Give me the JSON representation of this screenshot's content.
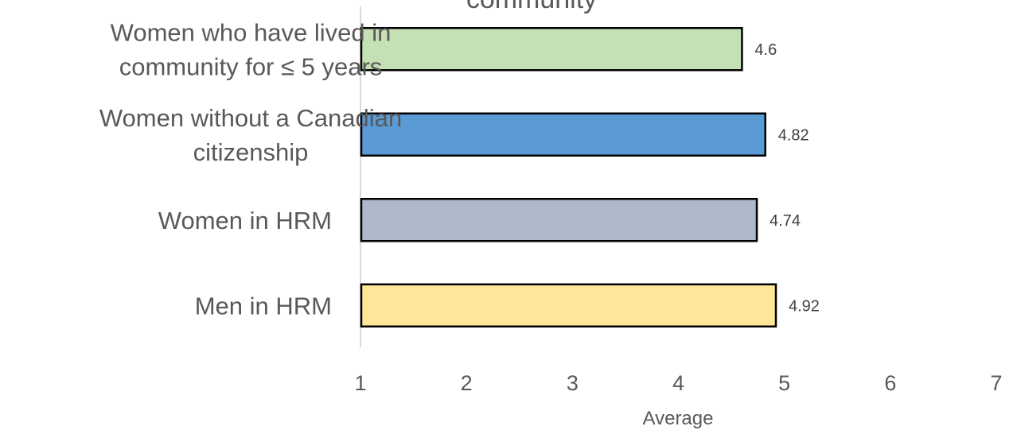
{
  "chart_data": {
    "type": "bar",
    "orientation": "horizontal",
    "title": "community",
    "categories": [
      [
        "Women who have lived in",
        "community for ≤ 5 years"
      ],
      [
        "Women without a Canadian",
        "citizenship"
      ],
      [
        "Women in HRM"
      ],
      [
        "Men in HRM"
      ]
    ],
    "values": [
      4.6,
      4.82,
      4.74,
      4.92
    ],
    "value_labels": [
      "4.6",
      "4.82",
      "4.74",
      "4.92"
    ],
    "colors": [
      "#c5e0b4",
      "#5b9bd5",
      "#adb9ca",
      "#ffe699"
    ],
    "xlabel": "Average",
    "xlim": [
      1,
      7
    ],
    "xticks": [
      "1",
      "2",
      "3",
      "4",
      "5",
      "6",
      "7"
    ],
    "grid": false,
    "legend": "none"
  }
}
